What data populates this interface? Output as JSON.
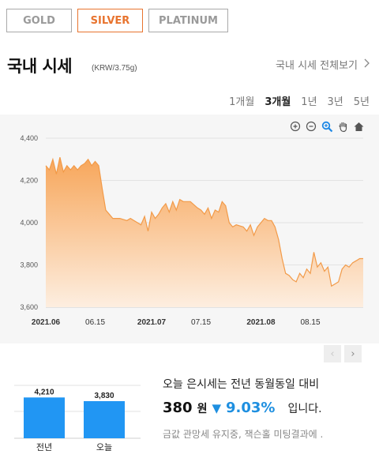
{
  "tabs": [
    {
      "label": "GOLD",
      "active": false
    },
    {
      "label": "SILVER",
      "active": true
    },
    {
      "label": "PLATINUM",
      "active": false
    }
  ],
  "header": {
    "title": "국내 시세",
    "unit": "(KRW/3.75g)",
    "more_link": "국내 시세 전체보기"
  },
  "periods": [
    {
      "label": "1개월",
      "active": false
    },
    {
      "label": "3개월",
      "active": true
    },
    {
      "label": "1년",
      "active": false
    },
    {
      "label": "3년",
      "active": false
    },
    {
      "label": "5년",
      "active": false
    }
  ],
  "tools": [
    "zoom-in-icon",
    "zoom-out-icon",
    "magnify-icon",
    "pan-hand-icon",
    "home-icon"
  ],
  "colors": {
    "accent": "#e8742f",
    "area_top": "#f7a65a",
    "area_bottom": "#fdeede",
    "bar": "#2196f3",
    "down": "#1e8fe0"
  },
  "chart_data": {
    "type": "area",
    "x_ticks": [
      "2021.06",
      "06.15",
      "2021.07",
      "07.15",
      "2021.08",
      "08.15"
    ],
    "y_ticks": [
      3600,
      3800,
      4000,
      4200,
      4400
    ],
    "ylim": [
      3600,
      4400
    ],
    "xlim": [
      "2021-06-01",
      "2021-08-30"
    ],
    "grid": true,
    "points": [
      [
        "2021-06-01",
        4270
      ],
      [
        "2021-06-02",
        4250
      ],
      [
        "2021-06-03",
        4300
      ],
      [
        "2021-06-04",
        4230
      ],
      [
        "2021-06-05",
        4310
      ],
      [
        "2021-06-06",
        4240
      ],
      [
        "2021-06-07",
        4270
      ],
      [
        "2021-06-08",
        4250
      ],
      [
        "2021-06-09",
        4270
      ],
      [
        "2021-06-10",
        4250
      ],
      [
        "2021-06-11",
        4270
      ],
      [
        "2021-06-12",
        4280
      ],
      [
        "2021-06-13",
        4300
      ],
      [
        "2021-06-14",
        4270
      ],
      [
        "2021-06-15",
        4290
      ],
      [
        "2021-06-16",
        4270
      ],
      [
        "2021-06-17",
        4160
      ],
      [
        "2021-06-18",
        4060
      ],
      [
        "2021-06-19",
        4040
      ],
      [
        "2021-06-20",
        4020
      ],
      [
        "2021-06-22",
        4020
      ],
      [
        "2021-06-24",
        4010
      ],
      [
        "2021-06-25",
        4020
      ],
      [
        "2021-06-27",
        4000
      ],
      [
        "2021-06-28",
        3990
      ],
      [
        "2021-06-29",
        4030
      ],
      [
        "2021-06-30",
        3960
      ],
      [
        "2021-07-01",
        4050
      ],
      [
        "2021-07-02",
        4020
      ],
      [
        "2021-07-03",
        4040
      ],
      [
        "2021-07-04",
        4070
      ],
      [
        "2021-07-05",
        4090
      ],
      [
        "2021-07-06",
        4050
      ],
      [
        "2021-07-07",
        4100
      ],
      [
        "2021-07-08",
        4060
      ],
      [
        "2021-07-09",
        4110
      ],
      [
        "2021-07-10",
        4100
      ],
      [
        "2021-07-12",
        4100
      ],
      [
        "2021-07-14",
        4070
      ],
      [
        "2021-07-15",
        4060
      ],
      [
        "2021-07-16",
        4040
      ],
      [
        "2021-07-17",
        4070
      ],
      [
        "2021-07-18",
        4020
      ],
      [
        "2021-07-19",
        4060
      ],
      [
        "2021-07-20",
        4050
      ],
      [
        "2021-07-21",
        4100
      ],
      [
        "2021-07-22",
        4080
      ],
      [
        "2021-07-23",
        4000
      ],
      [
        "2021-07-24",
        3980
      ],
      [
        "2021-07-25",
        3990
      ],
      [
        "2021-07-27",
        3980
      ],
      [
        "2021-07-28",
        3960
      ],
      [
        "2021-07-29",
        3990
      ],
      [
        "2021-07-30",
        3940
      ],
      [
        "2021-07-31",
        3980
      ],
      [
        "2021-08-01",
        4000
      ],
      [
        "2021-08-02",
        4020
      ],
      [
        "2021-08-03",
        4010
      ],
      [
        "2021-08-04",
        4010
      ],
      [
        "2021-08-05",
        3980
      ],
      [
        "2021-08-06",
        3920
      ],
      [
        "2021-08-07",
        3830
      ],
      [
        "2021-08-08",
        3760
      ],
      [
        "2021-08-09",
        3750
      ],
      [
        "2021-08-10",
        3730
      ],
      [
        "2021-08-11",
        3720
      ],
      [
        "2021-08-12",
        3760
      ],
      [
        "2021-08-13",
        3740
      ],
      [
        "2021-08-14",
        3780
      ],
      [
        "2021-08-15",
        3760
      ],
      [
        "2021-08-16",
        3860
      ],
      [
        "2021-08-17",
        3790
      ],
      [
        "2021-08-18",
        3810
      ],
      [
        "2021-08-19",
        3770
      ],
      [
        "2021-08-20",
        3790
      ],
      [
        "2021-08-21",
        3700
      ],
      [
        "2021-08-22",
        3710
      ],
      [
        "2021-08-23",
        3720
      ],
      [
        "2021-08-24",
        3780
      ],
      [
        "2021-08-25",
        3800
      ],
      [
        "2021-08-26",
        3790
      ],
      [
        "2021-08-27",
        3810
      ],
      [
        "2021-08-28",
        3820
      ],
      [
        "2021-08-29",
        3830
      ],
      [
        "2021-08-30",
        3830
      ]
    ]
  },
  "pager": {
    "prev": "‹",
    "next": "›"
  },
  "mini_chart": {
    "type": "bar",
    "categories": [
      "전년",
      "오늘"
    ],
    "values": [
      4210,
      3830
    ],
    "value_labels": [
      "4,210",
      "3,830"
    ]
  },
  "summary": {
    "line1": "오늘 은시세는 전년 동월동일 대비",
    "price": "380",
    "won": "원",
    "arrow": "▼",
    "percent": "9.03%",
    "tail": "입니다.",
    "news": "금값 관망세 유지중, 잭슨홀 미팅결과에 ."
  }
}
